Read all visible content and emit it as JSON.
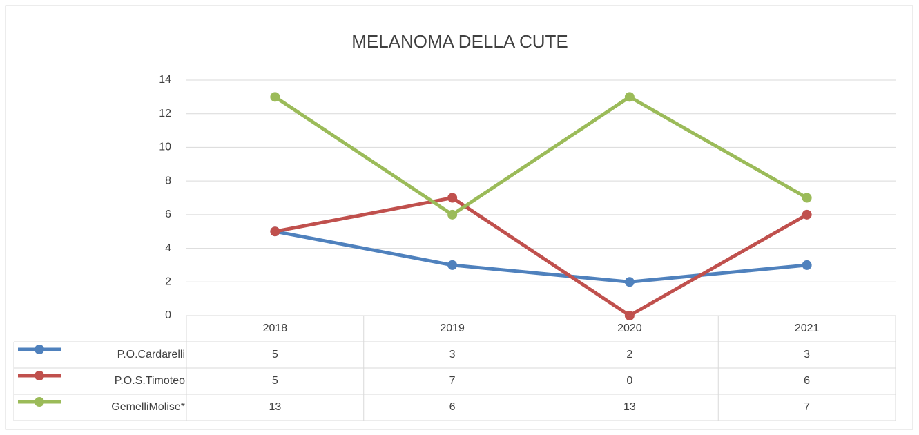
{
  "chart_data": {
    "type": "line",
    "title": "MELANOMA DELLA CUTE",
    "categories": [
      "2018",
      "2019",
      "2020",
      "2021"
    ],
    "series": [
      {
        "name": "P.O.Cardarelli",
        "color": "#4f81bd",
        "values": [
          5,
          3,
          2,
          3
        ]
      },
      {
        "name": "P.O.S.Timoteo",
        "color": "#c0504d",
        "values": [
          5,
          7,
          0,
          6
        ]
      },
      {
        "name": "GemelliMolise*",
        "color": "#9bbb59",
        "values": [
          13,
          6,
          13,
          7
        ]
      }
    ],
    "ylim": [
      0,
      14
    ],
    "yticks": [
      0,
      2,
      4,
      6,
      8,
      10,
      12,
      14
    ],
    "grid": true,
    "data_table": true
  }
}
